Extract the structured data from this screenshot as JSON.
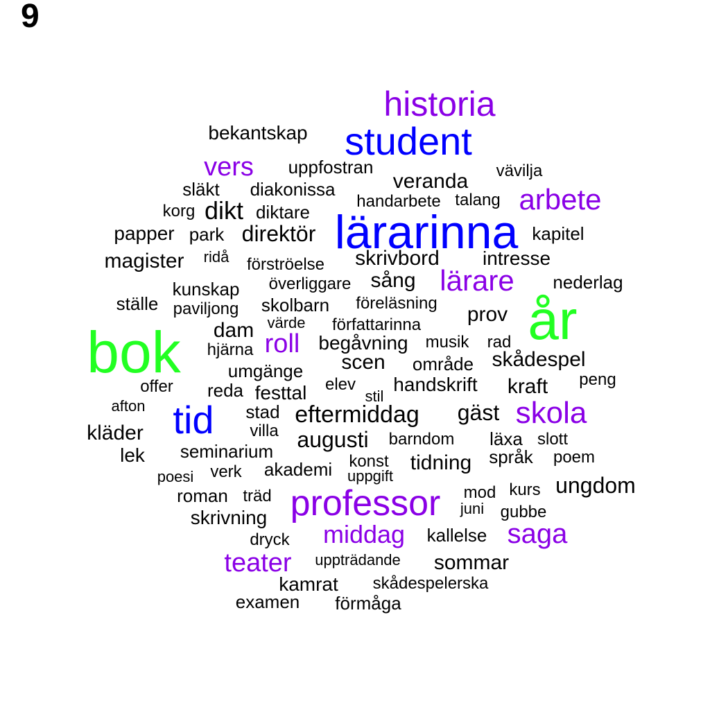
{
  "panel_label": "9",
  "colors": {
    "black": "#000000",
    "purple": "#8A00E6",
    "blue": "#0000FF",
    "green": "#22FF22"
  },
  "words": [
    {
      "text": "historia",
      "c": "purple"
    },
    {
      "text": "bekantskap",
      "c": "black"
    },
    {
      "text": "student",
      "c": "blue"
    },
    {
      "text": "vers",
      "c": "purple"
    },
    {
      "text": "uppfostran",
      "c": "black"
    },
    {
      "text": "vävilja",
      "c": "black"
    },
    {
      "text": "veranda",
      "c": "black"
    },
    {
      "text": "släkt",
      "c": "black"
    },
    {
      "text": "diakonissa",
      "c": "black"
    },
    {
      "text": "arbete",
      "c": "purple"
    },
    {
      "text": "handarbete",
      "c": "black"
    },
    {
      "text": "talang",
      "c": "black"
    },
    {
      "text": "korg",
      "c": "black"
    },
    {
      "text": "dikt",
      "c": "black"
    },
    {
      "text": "diktare",
      "c": "black"
    },
    {
      "text": "lärarinna",
      "c": "blue"
    },
    {
      "text": "papper",
      "c": "black"
    },
    {
      "text": "park",
      "c": "black"
    },
    {
      "text": "direktör",
      "c": "black"
    },
    {
      "text": "kapitel",
      "c": "black"
    },
    {
      "text": "magister",
      "c": "black"
    },
    {
      "text": "ridå",
      "c": "black"
    },
    {
      "text": "förströelse",
      "c": "black"
    },
    {
      "text": "skrivbord",
      "c": "black"
    },
    {
      "text": "intresse",
      "c": "black"
    },
    {
      "text": "kunskap",
      "c": "black"
    },
    {
      "text": "överliggare",
      "c": "black"
    },
    {
      "text": "sång",
      "c": "black"
    },
    {
      "text": "lärare",
      "c": "purple"
    },
    {
      "text": "nederlag",
      "c": "black"
    },
    {
      "text": "ställe",
      "c": "black"
    },
    {
      "text": "paviljong",
      "c": "black"
    },
    {
      "text": "skolbarn",
      "c": "black"
    },
    {
      "text": "föreläsning",
      "c": "black"
    },
    {
      "text": "prov",
      "c": "black"
    },
    {
      "text": "år",
      "c": "green"
    },
    {
      "text": "dam",
      "c": "black"
    },
    {
      "text": "värde",
      "c": "black"
    },
    {
      "text": "författarinna",
      "c": "black"
    },
    {
      "text": "bok",
      "c": "green"
    },
    {
      "text": "hjärna",
      "c": "black"
    },
    {
      "text": "roll",
      "c": "purple"
    },
    {
      "text": "begåvning",
      "c": "black"
    },
    {
      "text": "musik",
      "c": "black"
    },
    {
      "text": "rad",
      "c": "black"
    },
    {
      "text": "umgänge",
      "c": "black"
    },
    {
      "text": "scen",
      "c": "black"
    },
    {
      "text": "område",
      "c": "black"
    },
    {
      "text": "skådespel",
      "c": "black"
    },
    {
      "text": "offer",
      "c": "black"
    },
    {
      "text": "reda",
      "c": "black"
    },
    {
      "text": "festtal",
      "c": "black"
    },
    {
      "text": "elev",
      "c": "black"
    },
    {
      "text": "stil",
      "c": "black"
    },
    {
      "text": "handskrift",
      "c": "black"
    },
    {
      "text": "kraft",
      "c": "black"
    },
    {
      "text": "peng",
      "c": "black"
    },
    {
      "text": "afton",
      "c": "black"
    },
    {
      "text": "tid",
      "c": "blue"
    },
    {
      "text": "stad",
      "c": "black"
    },
    {
      "text": "eftermiddag",
      "c": "black"
    },
    {
      "text": "gäst",
      "c": "black"
    },
    {
      "text": "skola",
      "c": "purple"
    },
    {
      "text": "kläder",
      "c": "black"
    },
    {
      "text": "villa",
      "c": "black"
    },
    {
      "text": "augusti",
      "c": "black"
    },
    {
      "text": "barndom",
      "c": "black"
    },
    {
      "text": "läxa",
      "c": "black"
    },
    {
      "text": "slott",
      "c": "black"
    },
    {
      "text": "lek",
      "c": "black"
    },
    {
      "text": "seminarium",
      "c": "black"
    },
    {
      "text": "konst",
      "c": "black"
    },
    {
      "text": "tidning",
      "c": "black"
    },
    {
      "text": "språk",
      "c": "black"
    },
    {
      "text": "poem",
      "c": "black"
    },
    {
      "text": "poesi",
      "c": "black"
    },
    {
      "text": "verk",
      "c": "black"
    },
    {
      "text": "akademi",
      "c": "black"
    },
    {
      "text": "uppgift",
      "c": "black"
    },
    {
      "text": "ungdom",
      "c": "black"
    },
    {
      "text": "roman",
      "c": "black"
    },
    {
      "text": "träd",
      "c": "black"
    },
    {
      "text": "professor",
      "c": "purple"
    },
    {
      "text": "mod",
      "c": "black"
    },
    {
      "text": "kurs",
      "c": "black"
    },
    {
      "text": "juni",
      "c": "black"
    },
    {
      "text": "gubbe",
      "c": "black"
    },
    {
      "text": "skrivning",
      "c": "black"
    },
    {
      "text": "middag",
      "c": "purple"
    },
    {
      "text": "kallelse",
      "c": "black"
    },
    {
      "text": "saga",
      "c": "purple"
    },
    {
      "text": "dryck",
      "c": "black"
    },
    {
      "text": "teater",
      "c": "purple"
    },
    {
      "text": "uppträdande",
      "c": "black"
    },
    {
      "text": "sommar",
      "c": "black"
    },
    {
      "text": "kamrat",
      "c": "black"
    },
    {
      "text": "skådespelerska",
      "c": "black"
    },
    {
      "text": "examen",
      "c": "black"
    },
    {
      "text": "förmåga",
      "c": "black"
    }
  ]
}
